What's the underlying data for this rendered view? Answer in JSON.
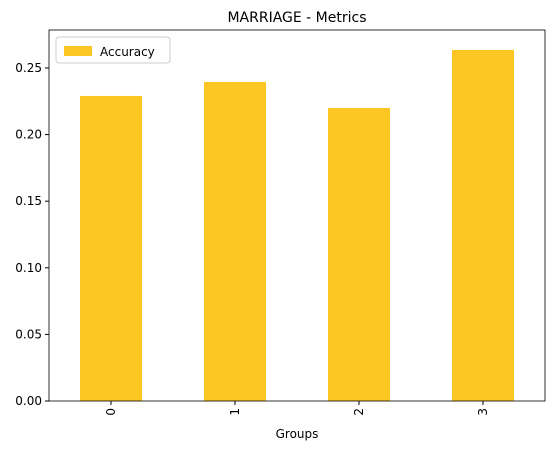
{
  "chart_data": {
    "type": "bar",
    "title": "MARRIAGE - Metrics",
    "x_label": "Groups",
    "categories": [
      "0",
      "1",
      "2",
      "3"
    ],
    "series": [
      {
        "name": "Accuracy",
        "color": "#fcc624",
        "values": [
          0.229,
          0.2395,
          0.22,
          0.2635
        ]
      }
    ],
    "ylim": [
      0,
      0.2785
    ],
    "yticks": [
      {
        "value": 0,
        "label": "0.00"
      },
      {
        "value": 0.05,
        "label": "0.05"
      },
      {
        "value": 0.1,
        "label": "0.10"
      },
      {
        "value": 0.15,
        "label": "0.15"
      },
      {
        "value": 0.2,
        "label": "0.20"
      },
      {
        "value": 0.25,
        "label": "0.25"
      }
    ],
    "legend": "upper left"
  }
}
